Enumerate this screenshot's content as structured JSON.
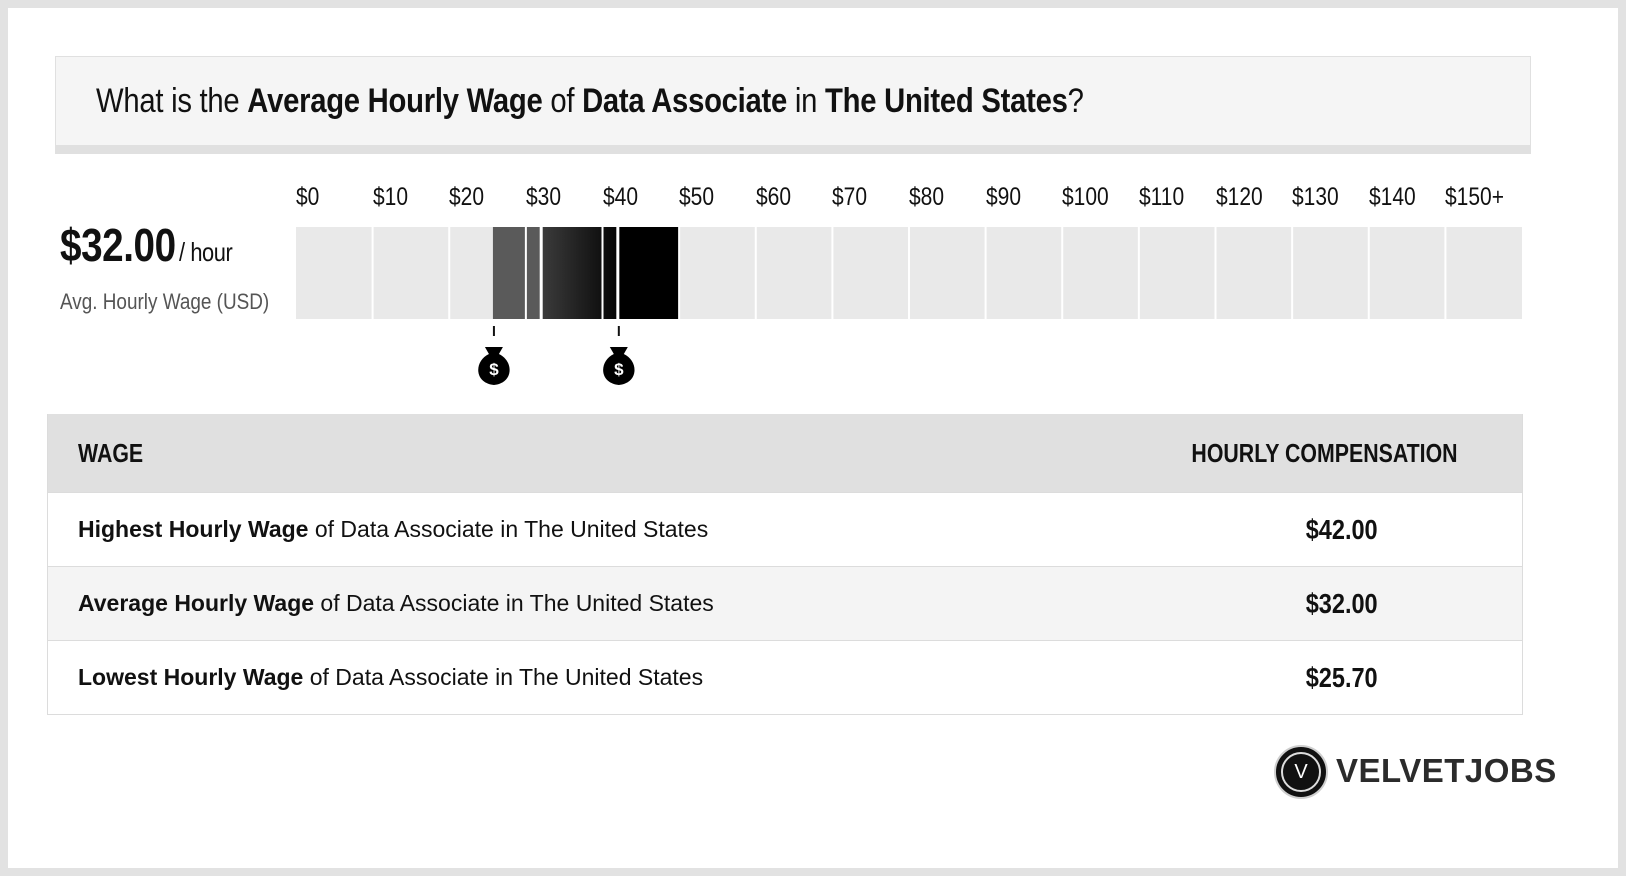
{
  "title": {
    "pre": "What is the ",
    "metric": "Average Hourly Wage",
    "mid1": " of ",
    "job": "Data Associate",
    "mid2": " in ",
    "location": "The United States",
    "end": "?"
  },
  "summary": {
    "value": "$32.00",
    "unit": "/ hour",
    "caption": "Avg. Hourly Wage (USD)"
  },
  "chart_data": {
    "type": "bar",
    "x_ticks": [
      "$0",
      "$10",
      "$20",
      "$30",
      "$40",
      "$50",
      "$60",
      "$70",
      "$80",
      "$90",
      "$100",
      "$110",
      "$120",
      "$130",
      "$140",
      "$150+"
    ],
    "range": [
      0,
      160
    ],
    "low": 25.7,
    "average": 32.0,
    "high": 42.0,
    "markers": [
      "money-bag-icon",
      "money-bag-icon"
    ],
    "colors": {
      "track": "#e9e9e9",
      "low_range": "#5a5a5a",
      "mid_range_start": "#3c3c3c",
      "mid_range_end": "#050505",
      "high_range": "#000000"
    }
  },
  "table": {
    "headers": [
      "WAGE",
      "HOURLY COMPENSATION"
    ],
    "rows": [
      {
        "bold": "Highest Hourly Wage",
        "rest": " of Data Associate in The United States",
        "value": "$42.00"
      },
      {
        "bold": "Average Hourly Wage",
        "rest": " of Data Associate in The United States",
        "value": "$32.00"
      },
      {
        "bold": "Lowest Hourly Wage",
        "rest": " of Data Associate in The United States",
        "value": "$25.70"
      }
    ]
  },
  "brand": {
    "mark": "V",
    "name": "VELVETJOBS"
  }
}
